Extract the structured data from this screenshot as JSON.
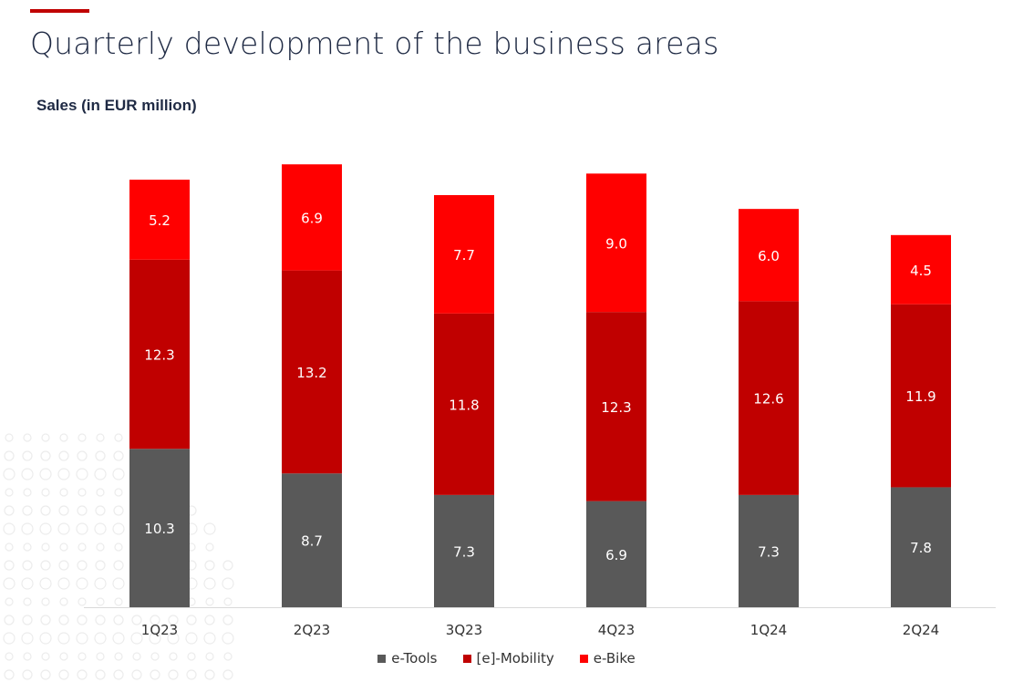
{
  "header": {
    "title": "Quarterly development of the business areas",
    "accent_color": "#c00000"
  },
  "chart_data": {
    "type": "bar",
    "stacked": true,
    "subtitle": "Sales (in EUR million)",
    "categories": [
      "1Q23",
      "2Q23",
      "3Q23",
      "4Q23",
      "1Q24",
      "2Q24"
    ],
    "series": [
      {
        "key": "etools",
        "name": "e-Tools",
        "color": "#595959",
        "values": [
          10.3,
          8.7,
          7.3,
          6.9,
          7.3,
          7.8
        ]
      },
      {
        "key": "emobility",
        "name": "[e]-Mobility",
        "color": "#c00000",
        "values": [
          12.3,
          13.2,
          11.8,
          12.3,
          12.6,
          11.9
        ]
      },
      {
        "key": "ebike",
        "name": "e-Bike",
        "color": "#ff0000",
        "values": [
          5.2,
          6.9,
          7.7,
          9.0,
          6.0,
          4.5
        ]
      }
    ],
    "ylim": [
      0,
      30
    ],
    "grid": false,
    "legend": "bottom-center",
    "value_labels": {
      "etools": [
        "10.3",
        "8.7",
        "7.3",
        "6.9",
        "7.3",
        "7.8"
      ],
      "emobility": [
        "12.3",
        "13.2",
        "11.8",
        "12.3",
        "12.6",
        "11.9"
      ],
      "ebike": [
        "5.2",
        "6.9",
        "7.7",
        "9.0",
        "6.0",
        "4.5"
      ]
    }
  }
}
